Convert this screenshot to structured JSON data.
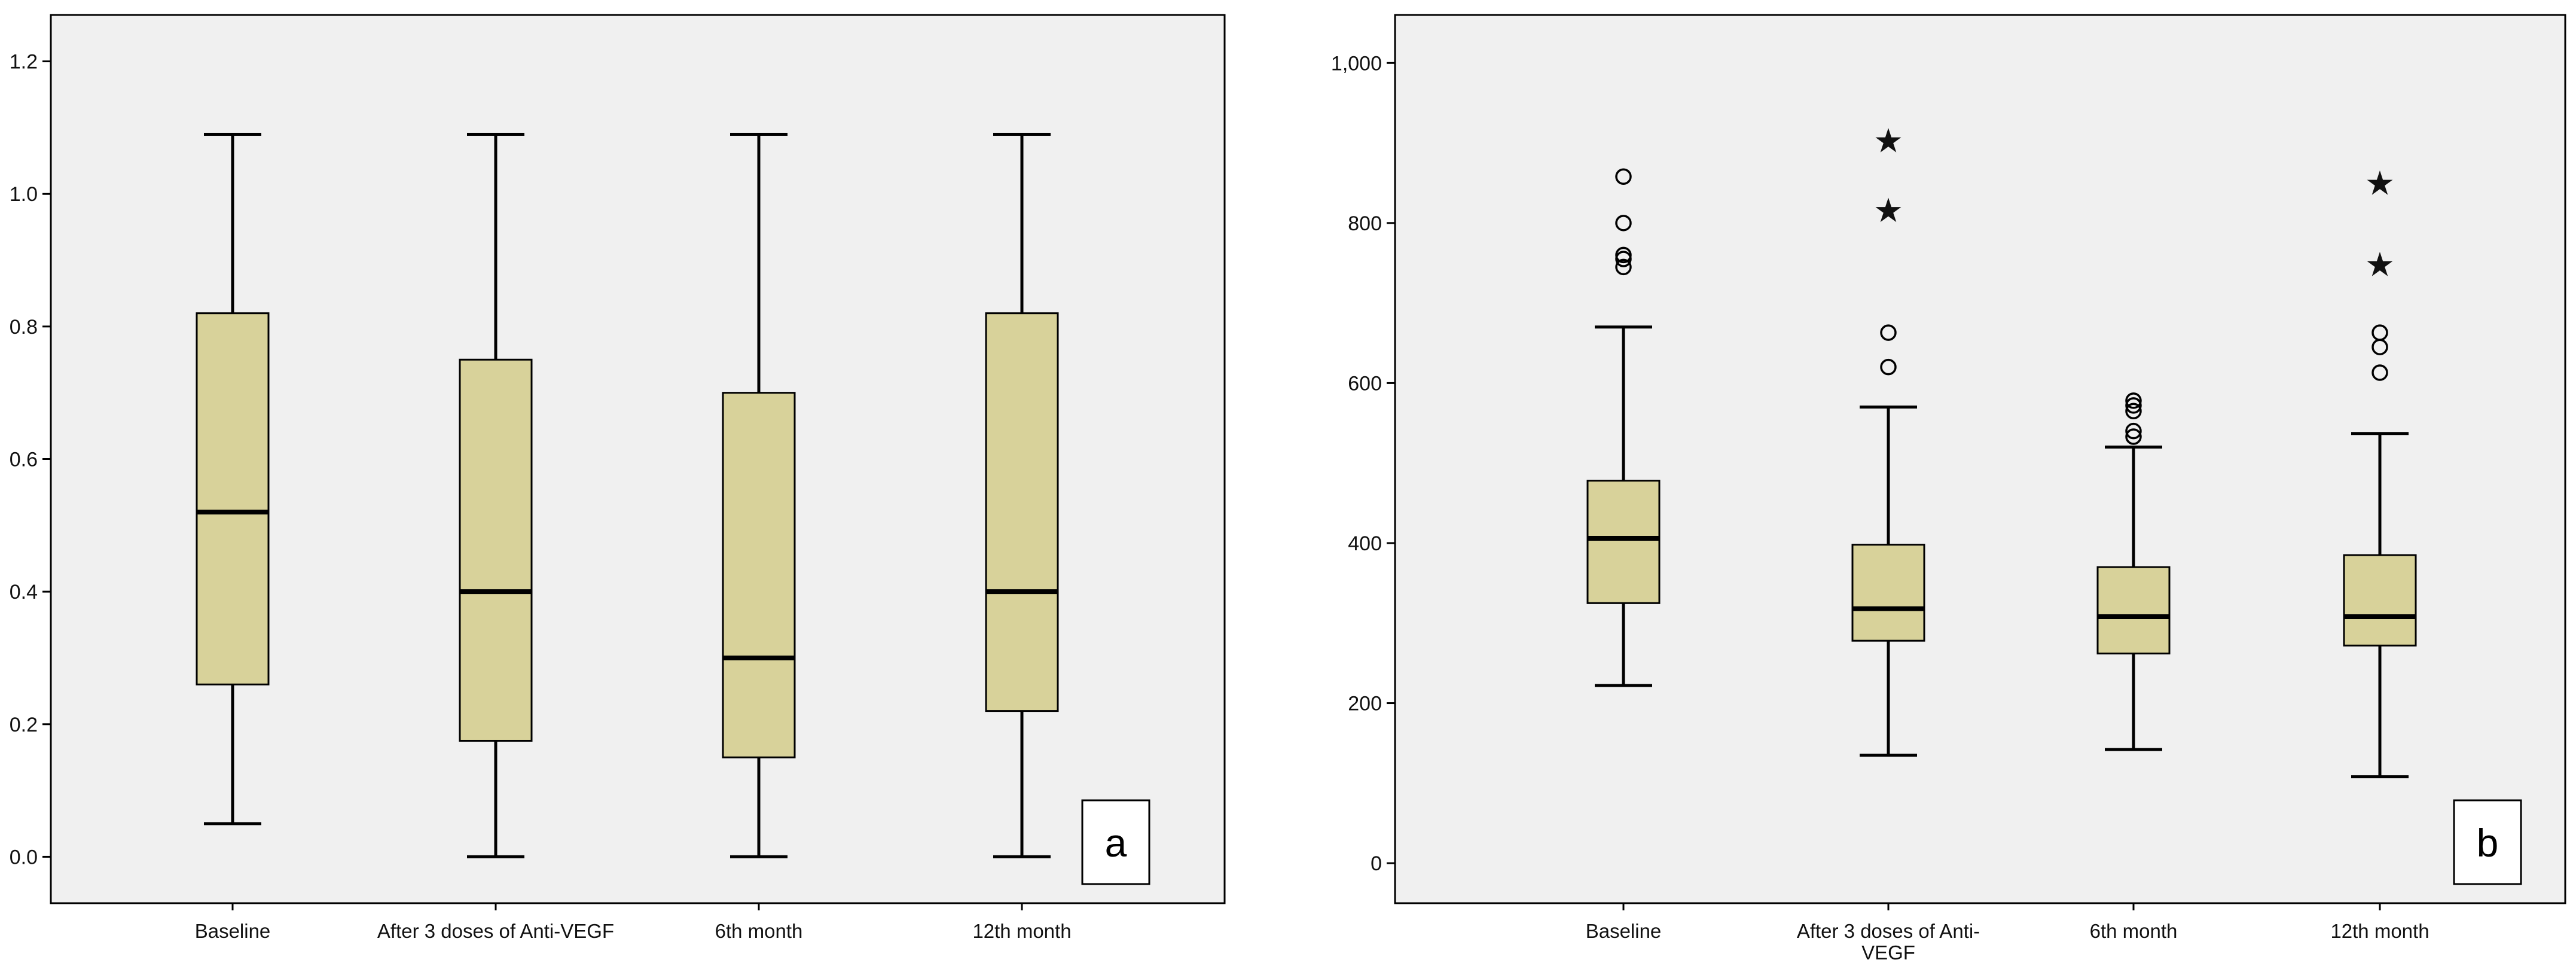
{
  "chart_data": [
    {
      "panel": "a",
      "type": "box",
      "title": "",
      "xlabel": "",
      "ylabel": "",
      "ylim": [
        -0.07,
        1.27
      ],
      "yticks": [
        0.0,
        0.2,
        0.4,
        0.6,
        0.8,
        1.0,
        1.2
      ],
      "ytick_labels": [
        "0.0",
        "0.2",
        "0.4",
        "0.6",
        "0.8",
        "1.0",
        "1.2"
      ],
      "grid": false,
      "categories": [
        "Baseline",
        "After 3 doses of Anti-VEGF",
        "6th month",
        "12th month"
      ],
      "category_label_lines": [
        [
          "Baseline"
        ],
        [
          "After 3 doses of Anti-VEGF"
        ],
        [
          "6th month"
        ],
        [
          "12th month"
        ]
      ],
      "boxes": [
        {
          "category": "Baseline",
          "min": 0.05,
          "q1": 0.26,
          "median": 0.52,
          "q3": 0.82,
          "max": 1.09,
          "outliers": [],
          "extremes": []
        },
        {
          "category": "After 3 doses of Anti-VEGF",
          "min": 0.0,
          "q1": 0.175,
          "median": 0.4,
          "q3": 0.75,
          "max": 1.09,
          "outliers": [],
          "extremes": []
        },
        {
          "category": "6th month",
          "min": 0.0,
          "q1": 0.15,
          "median": 0.3,
          "q3": 0.7,
          "max": 1.09,
          "outliers": [],
          "extremes": []
        },
        {
          "category": "12th month",
          "min": 0.0,
          "q1": 0.22,
          "median": 0.4,
          "q3": 0.82,
          "max": 1.09,
          "outliers": [],
          "extremes": []
        }
      ],
      "box_color": "#d8d29a",
      "plot_bg": "#f0f0f0"
    },
    {
      "panel": "b",
      "type": "box",
      "title": "",
      "xlabel": "",
      "ylabel": "",
      "ylim": [
        -50,
        1060
      ],
      "yticks": [
        0,
        200,
        400,
        600,
        800,
        1000
      ],
      "ytick_labels": [
        "0",
        "200",
        "400",
        "600",
        "800",
        "1,000"
      ],
      "grid": false,
      "categories": [
        "Baseline",
        "After 3 doses of Anti-VEGF",
        "6th month",
        "12th month"
      ],
      "category_label_lines": [
        [
          "Baseline"
        ],
        [
          "After 3 doses of Anti-",
          "VEGF"
        ],
        [
          "6th month"
        ],
        [
          "12th month"
        ]
      ],
      "boxes": [
        {
          "category": "Baseline",
          "min": 222,
          "q1": 325,
          "median": 406,
          "q3": 478,
          "max": 670,
          "outliers": [
            745,
            755,
            760,
            800,
            858
          ],
          "extremes": []
        },
        {
          "category": "After 3 doses of Anti-VEGF",
          "min": 135,
          "q1": 278,
          "median": 318,
          "q3": 398,
          "max": 570,
          "outliers": [
            620,
            663
          ],
          "extremes": [
            818,
            905
          ]
        },
        {
          "category": "6th month",
          "min": 142,
          "q1": 262,
          "median": 308,
          "q3": 370,
          "max": 520,
          "outliers": [
            533,
            540,
            565,
            572,
            578
          ],
          "extremes": []
        },
        {
          "category": "12th month",
          "min": 108,
          "q1": 272,
          "median": 308,
          "q3": 385,
          "max": 537,
          "outliers": [
            613,
            645,
            663
          ],
          "extremes": [
            750,
            852
          ]
        }
      ],
      "box_color": "#d8d29a",
      "plot_bg": "#f0f0f0"
    }
  ]
}
